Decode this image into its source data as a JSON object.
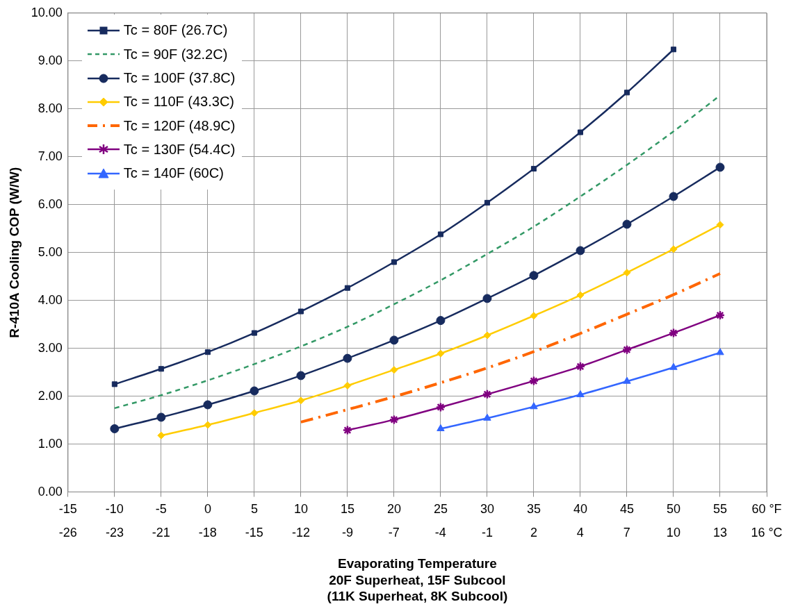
{
  "chart_data": {
    "type": "line",
    "xlabel": "Evaporating Temperature\n20F Superheat, 15F Subcool\n(11K Superheat, 8K Subcool)",
    "ylabel": "R-410A Cooling COP (W/W)",
    "x": [
      -10,
      -5,
      0,
      5,
      10,
      15,
      20,
      25,
      30,
      35,
      40,
      45,
      50,
      55
    ],
    "series": [
      {
        "name": "Tc = 80F (26.7C)",
        "color": "#172b5e",
        "marker": "square",
        "line_style": "solid",
        "values": [
          2.25,
          2.57,
          2.92,
          3.32,
          3.77,
          4.26,
          4.8,
          5.38,
          6.04,
          6.75,
          7.51,
          8.34,
          9.24,
          null
        ]
      },
      {
        "name": "Tc = 90F (32.2C)",
        "color": "#339966",
        "marker": "none",
        "line_style": "dashed",
        "values": [
          1.75,
          2.02,
          2.33,
          2.67,
          3.04,
          3.45,
          3.92,
          4.42,
          4.97,
          5.54,
          6.17,
          6.83,
          7.53,
          8.28
        ]
      },
      {
        "name": "Tc = 100F (37.8C)",
        "color": "#172b5e",
        "marker": "circle",
        "line_style": "solid",
        "values": [
          1.32,
          1.56,
          1.82,
          2.11,
          2.43,
          2.79,
          3.17,
          3.58,
          4.04,
          4.52,
          5.04,
          5.59,
          6.17,
          6.78
        ]
      },
      {
        "name": "Tc = 110F (43.3C)",
        "color": "#ffcc00",
        "marker": "diamond",
        "line_style": "solid",
        "values": [
          null,
          1.18,
          1.4,
          1.65,
          1.91,
          2.22,
          2.55,
          2.89,
          3.27,
          3.68,
          4.11,
          4.58,
          5.07,
          5.58
        ]
      },
      {
        "name": "Tc = 120F (48.9C)",
        "color": "#ff6600",
        "marker": "none",
        "line_style": "dashdot",
        "values": [
          null,
          null,
          null,
          null,
          1.46,
          1.72,
          1.99,
          2.28,
          2.59,
          2.93,
          3.31,
          3.71,
          4.12,
          4.56
        ]
      },
      {
        "name": "Tc = 130F (54.4C)",
        "color": "#800080",
        "marker": "cross",
        "line_style": "solid",
        "values": [
          null,
          null,
          null,
          null,
          null,
          1.29,
          1.51,
          1.77,
          2.04,
          2.32,
          2.62,
          2.97,
          3.32,
          3.69
        ]
      },
      {
        "name": "Tc = 140F (60C)",
        "color": "#3366ff",
        "marker": "triangle",
        "line_style": "solid",
        "values": [
          null,
          null,
          null,
          null,
          null,
          null,
          null,
          1.32,
          1.54,
          1.78,
          2.03,
          2.31,
          2.6,
          2.91
        ]
      }
    ],
    "xlim": [
      -15,
      60
    ],
    "xticks": [
      -15,
      -10,
      -5,
      0,
      5,
      10,
      15,
      20,
      25,
      30,
      35,
      40,
      45,
      50,
      55,
      {
        "value": 60,
        "label": "60 °F"
      }
    ],
    "x2lim": [
      -26.11,
      15.56
    ],
    "x2ticks": [
      {
        "value": -26.11,
        "label": "-26"
      },
      {
        "value": -23.33,
        "label": "-23"
      },
      {
        "value": -20.56,
        "label": "-21"
      },
      {
        "value": -17.78,
        "label": "-18"
      },
      {
        "value": -15,
        "label": "-15"
      },
      {
        "value": -12.22,
        "label": "-12"
      },
      {
        "value": -9.44,
        "label": "-9"
      },
      {
        "value": -6.67,
        "label": "-7"
      },
      {
        "value": -3.89,
        "label": "-4"
      },
      {
        "value": -1.11,
        "label": "-1"
      },
      {
        "value": 1.67,
        "label": "2"
      },
      {
        "value": 4.44,
        "label": "4"
      },
      {
        "value": 7.22,
        "label": "7"
      },
      {
        "value": 10,
        "label": "10"
      },
      {
        "value": 12.78,
        "label": "13"
      },
      {
        "value": 15.56,
        "label": "16 °C"
      }
    ],
    "ylim": [
      0,
      10
    ],
    "yticks": [
      {
        "value": 0,
        "label": "0.00"
      },
      {
        "value": 1,
        "label": "1.00"
      },
      {
        "value": 2,
        "label": "2.00"
      },
      {
        "value": 3,
        "label": "3.00"
      },
      {
        "value": 4,
        "label": "4.00"
      },
      {
        "value": 5,
        "label": "5.00"
      },
      {
        "value": 6,
        "label": "6.00"
      },
      {
        "value": 7,
        "label": "7.00"
      },
      {
        "value": 8,
        "label": "8.00"
      },
      {
        "value": 9,
        "label": "9.00"
      },
      {
        "value": 10,
        "label": "10.00"
      }
    ],
    "grid": true,
    "legend": "top left"
  }
}
